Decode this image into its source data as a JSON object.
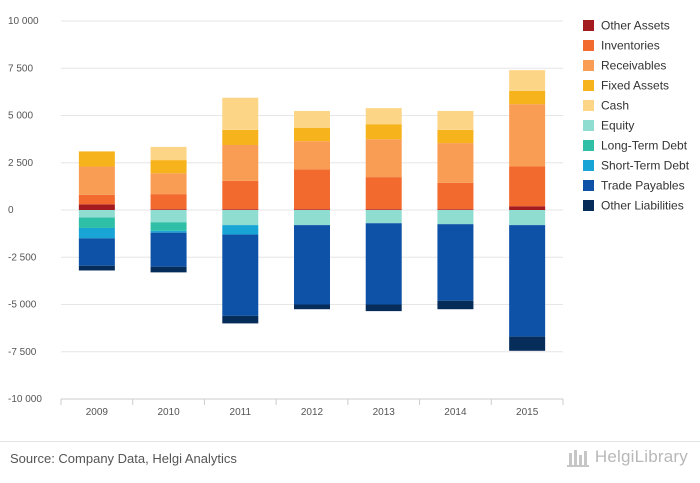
{
  "chart_data": {
    "type": "bar",
    "stacked": true,
    "categories": [
      "2009",
      "2010",
      "2011",
      "2012",
      "2013",
      "2014",
      "2015"
    ],
    "ylim": [
      -10000,
      10000
    ],
    "yticks": [
      10000,
      7500,
      5000,
      2500,
      0,
      -2500,
      -5000,
      -7500,
      -10000
    ],
    "ytick_labels": [
      "10 000",
      "7 500",
      "5 000",
      "2 500",
      "0",
      "-2 500",
      "-5 000",
      "-7 500",
      "-10 000"
    ],
    "grid": true,
    "legend_position": "right",
    "series": [
      {
        "name": "Other Assets",
        "color": "#a31b1f",
        "values": [
          300,
          40,
          40,
          40,
          40,
          40,
          200
        ]
      },
      {
        "name": "Inventories",
        "color": "#f26a2e",
        "values": [
          500,
          800,
          1500,
          2100,
          1700,
          1400,
          2100
        ]
      },
      {
        "name": "Receivables",
        "color": "#f99d55",
        "values": [
          1500,
          1100,
          1900,
          1500,
          2000,
          2100,
          3300
        ]
      },
      {
        "name": "Fixed Assets",
        "color": "#f6b31c",
        "values": [
          800,
          700,
          800,
          700,
          800,
          700,
          700
        ]
      },
      {
        "name": "Cash",
        "color": "#fdd586",
        "values": [
          0,
          700,
          1700,
          900,
          850,
          1000,
          1100
        ]
      },
      {
        "name": "Equity",
        "color": "#8fdcd0",
        "values": [
          -400,
          -650,
          -800,
          -800,
          -700,
          -750,
          -800
        ]
      },
      {
        "name": "Long-Term Debt",
        "color": "#2fbfa6",
        "values": [
          -550,
          -450,
          0,
          0,
          0,
          0,
          0
        ]
      },
      {
        "name": "Short-Term Debt",
        "color": "#18a5d6",
        "values": [
          -550,
          -100,
          -500,
          0,
          0,
          0,
          0
        ]
      },
      {
        "name": "Trade Payables",
        "color": "#0d52a6",
        "values": [
          -1450,
          -1800,
          -4300,
          -4200,
          -4300,
          -4050,
          -5900
        ]
      },
      {
        "name": "Other Liabilities",
        "color": "#062c5a",
        "values": [
          -250,
          -300,
          -400,
          -250,
          -350,
          -450,
          -750
        ]
      }
    ]
  },
  "footer": {
    "source": "Source: Company Data, Helgi Analytics",
    "brand": "HelgiLibrary"
  }
}
